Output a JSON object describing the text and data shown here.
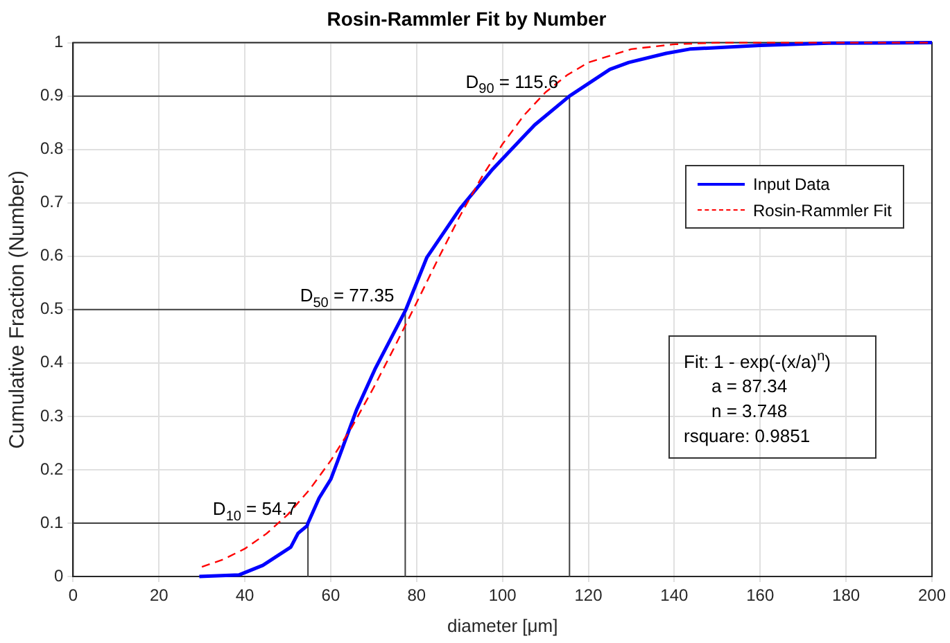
{
  "chart_data": {
    "type": "line",
    "title": "Rosin-Rammler Fit by Number",
    "xlabel": "diameter [μm]",
    "ylabel": "Cumulative Fraction (Number)",
    "xlim": [
      0,
      200
    ],
    "xticks": [
      0,
      20,
      40,
      60,
      80,
      100,
      120,
      140,
      160,
      180,
      200
    ],
    "ylim": [
      0,
      1
    ],
    "yticks": [
      0,
      0.1,
      0.2,
      0.3,
      0.4,
      0.5,
      0.6,
      0.7,
      0.8,
      0.9,
      1
    ],
    "grid": true,
    "legend": "right",
    "marker": "none",
    "series": [
      {
        "name": "Input Data",
        "color": "#0000ff",
        "line_style": "solid",
        "x": [
          29.4,
          38.7,
          44.2,
          50.7,
          52.4,
          54.5,
          54.7,
          57.3,
          60,
          61.6,
          66,
          70.4,
          72.6,
          77.5,
          82.4,
          90.1,
          97.7,
          107.5,
          115.6,
          125,
          129.4,
          138.1,
          143.6,
          160,
          176,
          200
        ],
        "values": [
          0,
          0.003,
          0.021,
          0.055,
          0.081,
          0.095,
          0.1,
          0.147,
          0.182,
          0.216,
          0.312,
          0.39,
          0.424,
          0.5,
          0.598,
          0.689,
          0.763,
          0.846,
          0.9,
          0.95,
          0.963,
          0.98,
          0.988,
          0.995,
          0.999,
          1
        ]
      },
      {
        "name": "Rosin-Rammler Fit",
        "color": "#ff0000",
        "line_style": "dashed",
        "x": [
          30,
          35,
          40,
          45,
          50,
          55,
          60,
          65,
          70,
          75,
          80,
          85,
          90,
          95,
          100,
          105,
          110,
          115,
          120,
          130,
          140,
          150,
          160,
          180,
          200
        ],
        "values": [
          0.018,
          0.032,
          0.052,
          0.08,
          0.116,
          0.162,
          0.217,
          0.281,
          0.354,
          0.432,
          0.513,
          0.595,
          0.674,
          0.746,
          0.81,
          0.864,
          0.907,
          0.939,
          0.963,
          0.988,
          0.997,
          1,
          1,
          1,
          1
        ]
      },
      {
        "type": "line",
        "color": "#404040",
        "line_style": "solid",
        "x": [
          0,
          54.7,
          54.7
        ],
        "values": [
          0.1,
          0.1,
          0
        ]
      },
      {
        "type": "line",
        "color": "#404040",
        "line_style": "solid",
        "x": [
          0,
          77.35,
          77.35
        ],
        "values": [
          0.5,
          0.5,
          0
        ]
      },
      {
        "type": "line",
        "color": "#404040",
        "line_style": "solid",
        "x": [
          0,
          115.6,
          115.6
        ],
        "values": [
          0.9,
          0.9,
          0
        ]
      }
    ],
    "annotations": [
      {
        "text": "D$_{10}$ = 54.7",
        "x": 54.7,
        "y": 0.1
      },
      {
        "text": "D$_{50}$ = 77.35",
        "x": 77.35,
        "y": 0.5
      },
      {
        "text": "D$_{90}$ = 115.6",
        "x": 115.6,
        "y": 0.9
      },
      "Fit: 1 - exp(-(x/a)$^{n}$)",
      "a = 87.34",
      "n = 3.748",
      "rsquare: 0.9851"
    ]
  }
}
